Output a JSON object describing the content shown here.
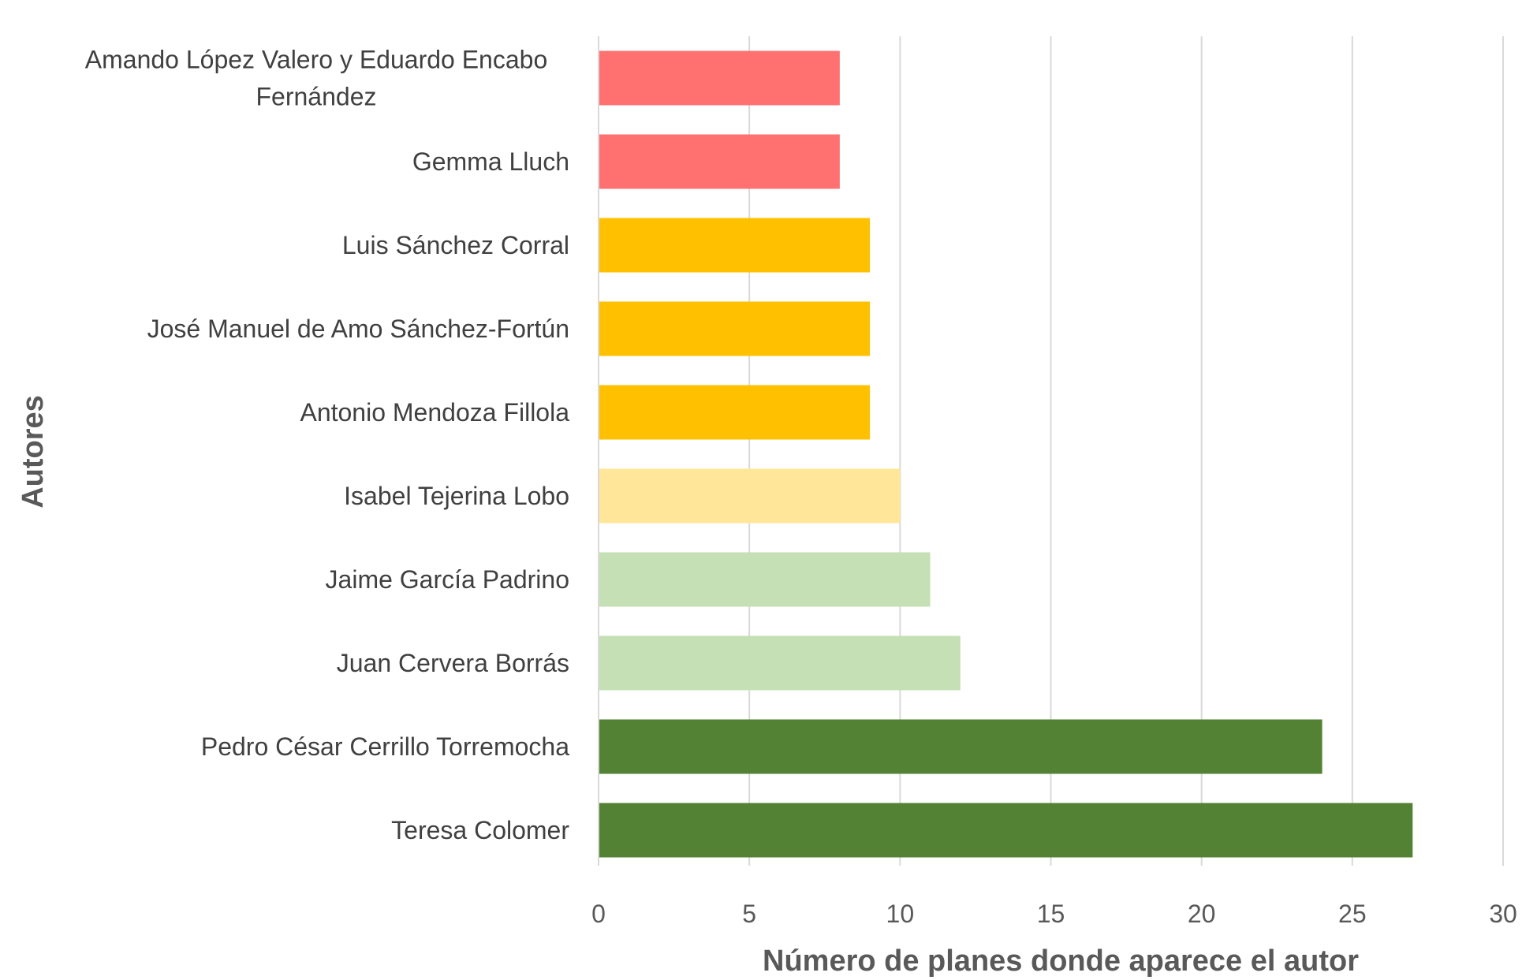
{
  "chart_data": {
    "type": "bar",
    "orientation": "horizontal",
    "title": "",
    "xlabel": "Número de planes donde aparece el autor",
    "ylabel": "Autores",
    "xlim": [
      0,
      30
    ],
    "x_ticks": [
      0,
      5,
      10,
      15,
      20,
      25,
      30
    ],
    "grid": true,
    "legend": "none",
    "categories": [
      [
        "Amando López Valero y Eduardo Encabo",
        "Fernández"
      ],
      [
        "Gemma Lluch"
      ],
      [
        "Luis Sánchez Corral"
      ],
      [
        "José Manuel de Amo Sánchez-Fortún"
      ],
      [
        "Antonio Mendoza Fillola"
      ],
      [
        "Isabel Tejerina Lobo"
      ],
      [
        "Jaime García Padrino"
      ],
      [
        "Juan Cervera Borrás"
      ],
      [
        "Pedro César Cerrillo Torremocha"
      ],
      [
        "Teresa Colomer"
      ]
    ],
    "values": [
      8,
      8,
      9,
      9,
      9,
      10,
      11,
      12,
      24,
      27
    ],
    "bar_colors": [
      "#ff7171",
      "#ff7171",
      "#ffc000",
      "#ffc000",
      "#ffc000",
      "#ffe699",
      "#c5e0b4",
      "#c5e0b4",
      "#548235",
      "#548235"
    ],
    "colors": {
      "grid": "#d9d9d9",
      "axis": "#d9d9d9",
      "text": "#595959"
    }
  }
}
